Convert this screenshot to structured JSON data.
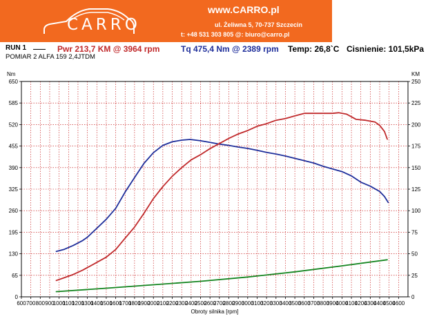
{
  "header": {
    "logo_text": "CARRO",
    "url": "www.CARRO.pl",
    "address": "ul. Żeliwna 5, 70-737 Szczecin",
    "contact": "t: +48 531 303 805   @: biuro@carro.pl",
    "brand_color": "#f2691f"
  },
  "run": {
    "label": "RUN 1",
    "power": "Pwr  213,7 KM @ 3964 rpm",
    "torque": "Tq 475,4 Nm @ 2389 rpm",
    "temperature": "Temp: 26,8`C",
    "pressure": "Cisnienie: 101,5kPa",
    "measurement": "POMIAR 2 ALFA 159 2,4JTDM"
  },
  "chart_data": {
    "type": "line",
    "xlabel": "Obroty silnika [rpm]",
    "ylabel_left": "Nm",
    "ylabel_right": "KM",
    "xlim": [
      600,
      4700
    ],
    "ylim_left": [
      0,
      650
    ],
    "ylim_right": [
      0,
      250
    ],
    "xticks": [
      600,
      700,
      800,
      900,
      1000,
      1100,
      1200,
      1300,
      1400,
      1500,
      1600,
      1700,
      1800,
      1900,
      2000,
      2100,
      2200,
      2300,
      2400,
      2500,
      2600,
      2700,
      2800,
      2900,
      3000,
      3100,
      3200,
      3300,
      3400,
      3500,
      3600,
      3700,
      3800,
      3900,
      4000,
      4100,
      4200,
      4300,
      4400,
      4500,
      4600
    ],
    "yticks_left": [
      0,
      65,
      130,
      195,
      260,
      325,
      390,
      455,
      520,
      585,
      650
    ],
    "yticks_right": [
      0,
      25,
      50,
      75,
      100,
      125,
      150,
      175,
      200,
      225,
      250
    ],
    "grid": true,
    "series": [
      {
        "axis": "left",
        "color": "#1d2d9a",
        "x": [
          970,
          1050,
          1150,
          1250,
          1300,
          1400,
          1500,
          1600,
          1700,
          1800,
          1900,
          2000,
          2100,
          2200,
          2300,
          2389,
          2500,
          2600,
          2700,
          2800,
          2900,
          3000,
          3100,
          3200,
          3300,
          3400,
          3500,
          3600,
          3700,
          3800,
          3900,
          4000,
          4100,
          4200,
          4300,
          4400,
          4450,
          4490
        ],
        "values": [
          137,
          143,
          155,
          170,
          180,
          207,
          234,
          267,
          316,
          360,
          403,
          435,
          457,
          468,
          473,
          475,
          471,
          466,
          461,
          457,
          452,
          448,
          442,
          436,
          431,
          425,
          418,
          411,
          404,
          394,
          386,
          378,
          365,
          346,
          334,
          318,
          303,
          285
        ]
      },
      {
        "axis": "right",
        "color": "#c0282a",
        "x": [
          970,
          1050,
          1150,
          1250,
          1300,
          1400,
          1500,
          1600,
          1700,
          1800,
          1900,
          2000,
          2100,
          2200,
          2300,
          2400,
          2500,
          2600,
          2700,
          2800,
          2900,
          3000,
          3100,
          3200,
          3300,
          3400,
          3500,
          3600,
          3700,
          3800,
          3900,
          3964,
          4050,
          4150,
          4250,
          4350,
          4400,
          4450,
          4480
        ],
        "values": [
          19,
          22,
          26,
          31,
          34,
          40,
          46,
          55,
          68,
          81,
          97,
          114,
          128,
          140,
          150,
          159,
          165,
          172,
          178,
          184,
          189,
          193,
          198,
          201,
          205,
          207,
          210,
          213,
          213,
          213,
          213,
          213.7,
          212,
          206,
          205,
          203,
          199,
          192,
          183
        ]
      },
      {
        "axis": "right",
        "color": "#13841e",
        "x": [
          970,
          1500,
          2000,
          2500,
          3000,
          3500,
          4000,
          4480
        ],
        "values": [
          6,
          10,
          14,
          18,
          23,
          29,
          36,
          43
        ]
      }
    ]
  }
}
